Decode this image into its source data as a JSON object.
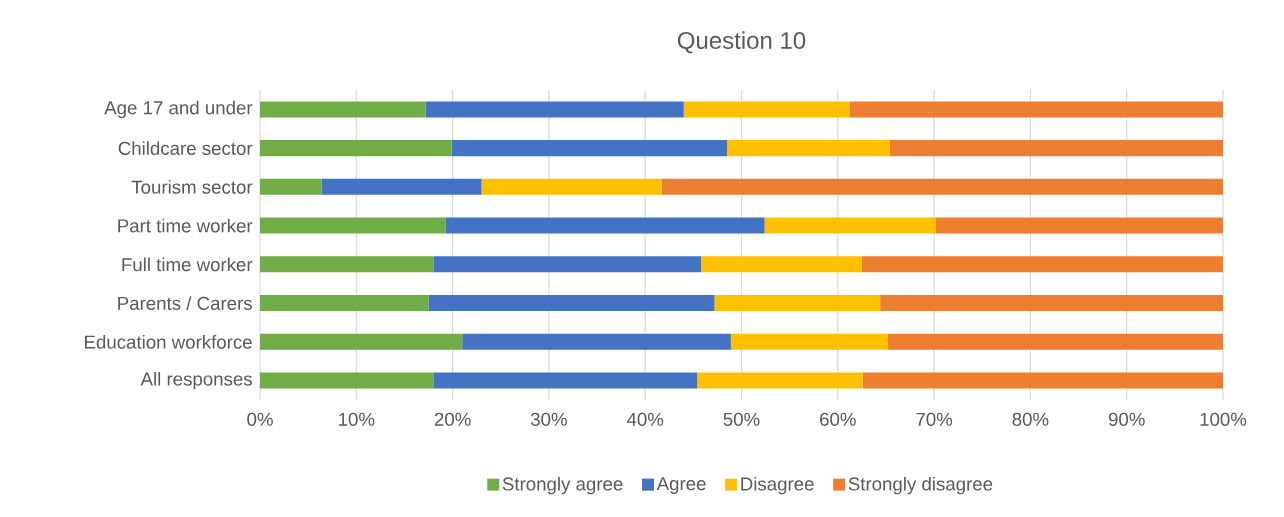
{
  "chart_data": {
    "type": "bar",
    "orientation": "horizontal",
    "stacked": true,
    "title": "Question 10",
    "categories": [
      "Age 17 and under",
      "Childcare sector",
      "Tourism sector",
      "Part time worker",
      "Full time worker",
      "Parents / Carers",
      "Education workforce",
      "All responses"
    ],
    "series": [
      {
        "name": "Strongly agree",
        "color": "#70ad47",
        "values": [
          17.2,
          19.9,
          6.4,
          19.3,
          18.0,
          17.5,
          21.0,
          18.0
        ]
      },
      {
        "name": "Agree",
        "color": "#4472c4",
        "values": [
          26.8,
          28.6,
          16.6,
          33.1,
          27.8,
          29.7,
          27.9,
          27.4
        ]
      },
      {
        "name": "Disagree",
        "color": "#ffc000",
        "values": [
          17.2,
          16.9,
          18.7,
          17.8,
          16.7,
          17.2,
          16.3,
          17.2
        ]
      },
      {
        "name": "Strongly disagree",
        "color": "#ed7d31",
        "values": [
          38.8,
          34.6,
          58.3,
          29.8,
          37.5,
          35.6,
          34.8,
          37.4
        ]
      }
    ],
    "xlim": [
      0,
      100
    ],
    "xticks": [
      {
        "value": 0,
        "label": "0%"
      },
      {
        "value": 10,
        "label": "10%"
      },
      {
        "value": 20,
        "label": "20%"
      },
      {
        "value": 30,
        "label": "30%"
      },
      {
        "value": 40,
        "label": "40%"
      },
      {
        "value": 50,
        "label": "50%"
      },
      {
        "value": 60,
        "label": "60%"
      },
      {
        "value": 70,
        "label": "70%"
      },
      {
        "value": 80,
        "label": "80%"
      },
      {
        "value": 90,
        "label": "90%"
      },
      {
        "value": 100,
        "label": "100%"
      }
    ],
    "grid": "x",
    "legend": "bottom"
  }
}
